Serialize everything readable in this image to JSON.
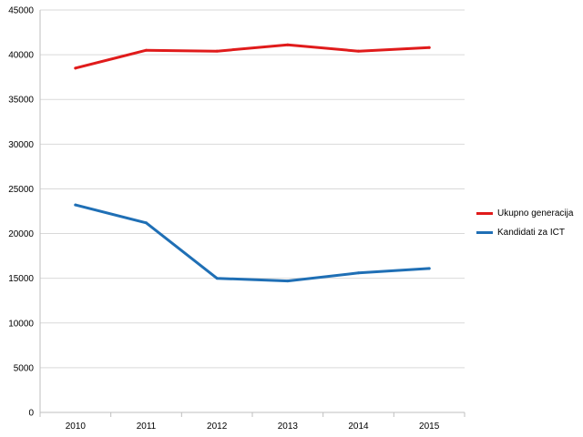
{
  "chart_data": {
    "type": "line",
    "title": "",
    "xlabel": "",
    "ylabel": "",
    "categories": [
      "2010",
      "2011",
      "2012",
      "2013",
      "2014",
      "2015"
    ],
    "ylim": [
      0,
      45000
    ],
    "yticks": [
      0,
      5000,
      10000,
      15000,
      20000,
      25000,
      30000,
      35000,
      40000,
      45000
    ],
    "grid": true,
    "legend_position": "right",
    "series": [
      {
        "name": "Ukupno generacija",
        "color": "#e01b1b",
        "values": [
          38500,
          40500,
          40400,
          41100,
          40400,
          40800
        ]
      },
      {
        "name": "Kandidati za ICT",
        "color": "#1f6fb5",
        "values": [
          23200,
          21200,
          15000,
          14700,
          15600,
          16100
        ]
      }
    ]
  }
}
